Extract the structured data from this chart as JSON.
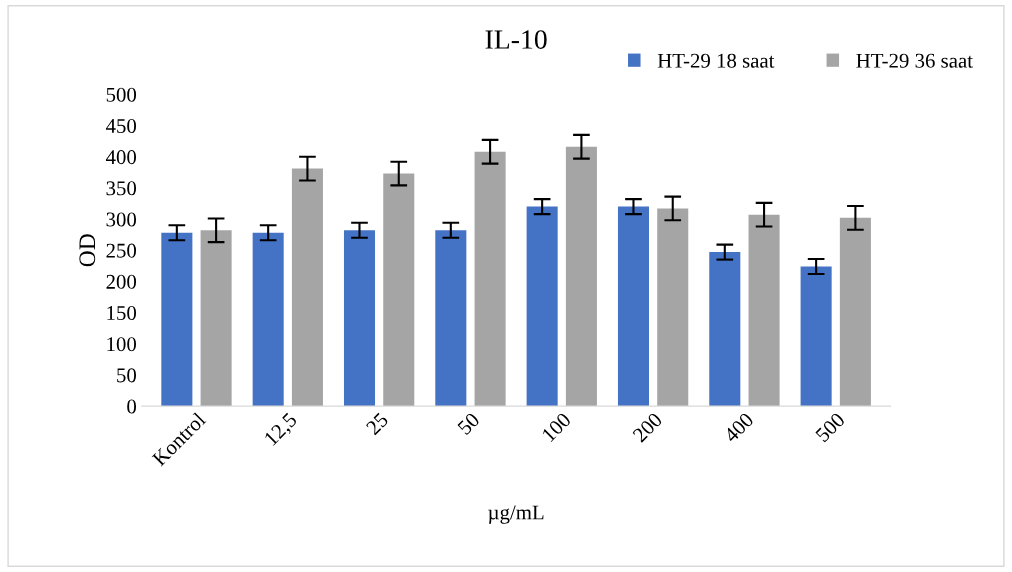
{
  "chart_data": {
    "type": "bar",
    "title": "IL-10",
    "xlabel": "µg/mL",
    "ylabel": "OD",
    "categories": [
      "Kontrol",
      "12,5",
      "25",
      "50",
      "100",
      "200",
      "400",
      "500"
    ],
    "series": [
      {
        "name": "HT-29 18 saat",
        "color": "#4472c4",
        "values": [
          278,
          278,
          282,
          282,
          320,
          320,
          247,
          224
        ],
        "errors": [
          12,
          12,
          12,
          12,
          12,
          12,
          12,
          12
        ]
      },
      {
        "name": "HT-29 36 saat",
        "color": "#a5a5a5",
        "values": [
          282,
          381,
          373,
          408,
          416,
          317,
          307,
          302
        ],
        "errors": [
          19,
          19,
          19,
          19,
          19,
          19,
          19,
          19
        ]
      }
    ],
    "ylim": [
      0,
      500
    ],
    "yticks": [
      0,
      50,
      100,
      150,
      200,
      250,
      300,
      350,
      400,
      450,
      500
    ],
    "grid": false,
    "legend": "top right"
  }
}
